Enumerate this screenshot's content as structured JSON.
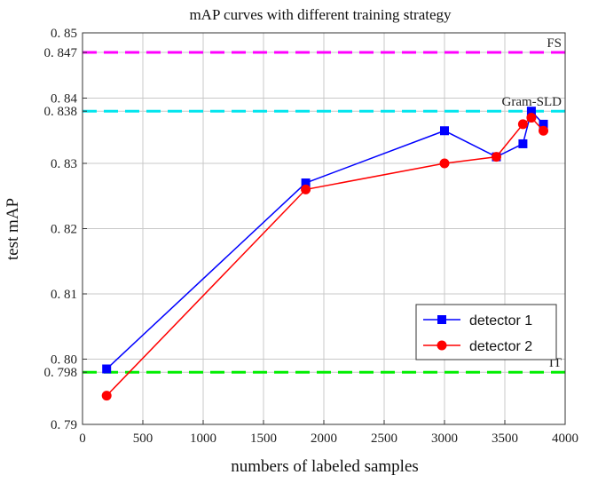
{
  "chart_data": {
    "type": "line",
    "title": "mAP curves with different training strategy",
    "xlabel": "numbers of labeled samples",
    "ylabel": "test mAP",
    "xlim": [
      0,
      4000
    ],
    "ylim": [
      0.79,
      0.85
    ],
    "x_ticks": [
      0,
      500,
      1000,
      1500,
      2000,
      2500,
      3000,
      3500,
      4000
    ],
    "x_tick_labels": [
      "0",
      "500",
      "1000",
      "1500",
      "2000",
      "2500",
      "3000",
      "3500",
      "4000"
    ],
    "y_ticks": [
      0.79,
      0.798,
      0.8,
      0.81,
      0.82,
      0.83,
      0.838,
      0.84,
      0.847,
      0.85
    ],
    "y_tick_labels": [
      "0. 79",
      "0. 798",
      "0. 80",
      "0. 81",
      "0. 82",
      "0. 83",
      "0. 838",
      "0. 84",
      "0. 847",
      "0. 85"
    ],
    "grid": true,
    "legend_position": "bottom-right",
    "series": [
      {
        "name": "detector 1",
        "color": "#0000ff",
        "marker": "square",
        "x": [
          200,
          1850,
          3000,
          3430,
          3650,
          3720,
          3820
        ],
        "y": [
          0.7985,
          0.827,
          0.835,
          0.831,
          0.833,
          0.838,
          0.836
        ]
      },
      {
        "name": "detector 2",
        "color": "#ff0000",
        "marker": "circle",
        "x": [
          200,
          1850,
          3000,
          3430,
          3650,
          3720,
          3820
        ],
        "y": [
          0.7944,
          0.826,
          0.83,
          0.831,
          0.836,
          0.837,
          0.835
        ]
      }
    ],
    "reference_lines": [
      {
        "name": "FS",
        "value": 0.847,
        "color": "#ff00ff"
      },
      {
        "name": "Gram-SLD",
        "value": 0.838,
        "color": "#00e5ee"
      },
      {
        "name": "IT",
        "value": 0.798,
        "color": "#00ee00"
      }
    ]
  }
}
